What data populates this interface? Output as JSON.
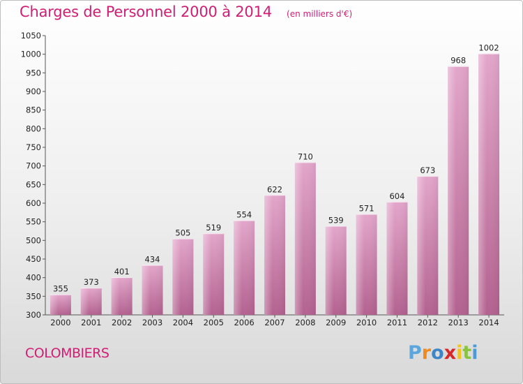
{
  "chart_data": {
    "type": "bar",
    "title": "Charges de Personnel 2000 à 2014",
    "subtitle": "(en milliers d'€)",
    "categories": [
      "2000",
      "2001",
      "2002",
      "2003",
      "2004",
      "2005",
      "2006",
      "2007",
      "2008",
      "2009",
      "2010",
      "2011",
      "2012",
      "2013",
      "2014"
    ],
    "values": [
      355,
      373,
      401,
      434,
      505,
      519,
      554,
      622,
      710,
      539,
      571,
      604,
      673,
      968,
      1002
    ],
    "ylim": [
      300,
      1050
    ],
    "yticks": [
      300,
      350,
      400,
      450,
      500,
      550,
      600,
      650,
      700,
      750,
      800,
      850,
      900,
      950,
      1000,
      1050
    ],
    "grid": false,
    "legend": "none",
    "bar_color": "#c8679e",
    "bar_color_light": "#e3a6cb"
  },
  "commune": "COLOMBIERS",
  "logo": {
    "text": "Proxiti",
    "colors": [
      "#5aa7dd",
      "#f08a1c",
      "#3f86c8",
      "#d62828",
      "#f2c318",
      "#8ac43f",
      "#4d9ad6"
    ]
  }
}
